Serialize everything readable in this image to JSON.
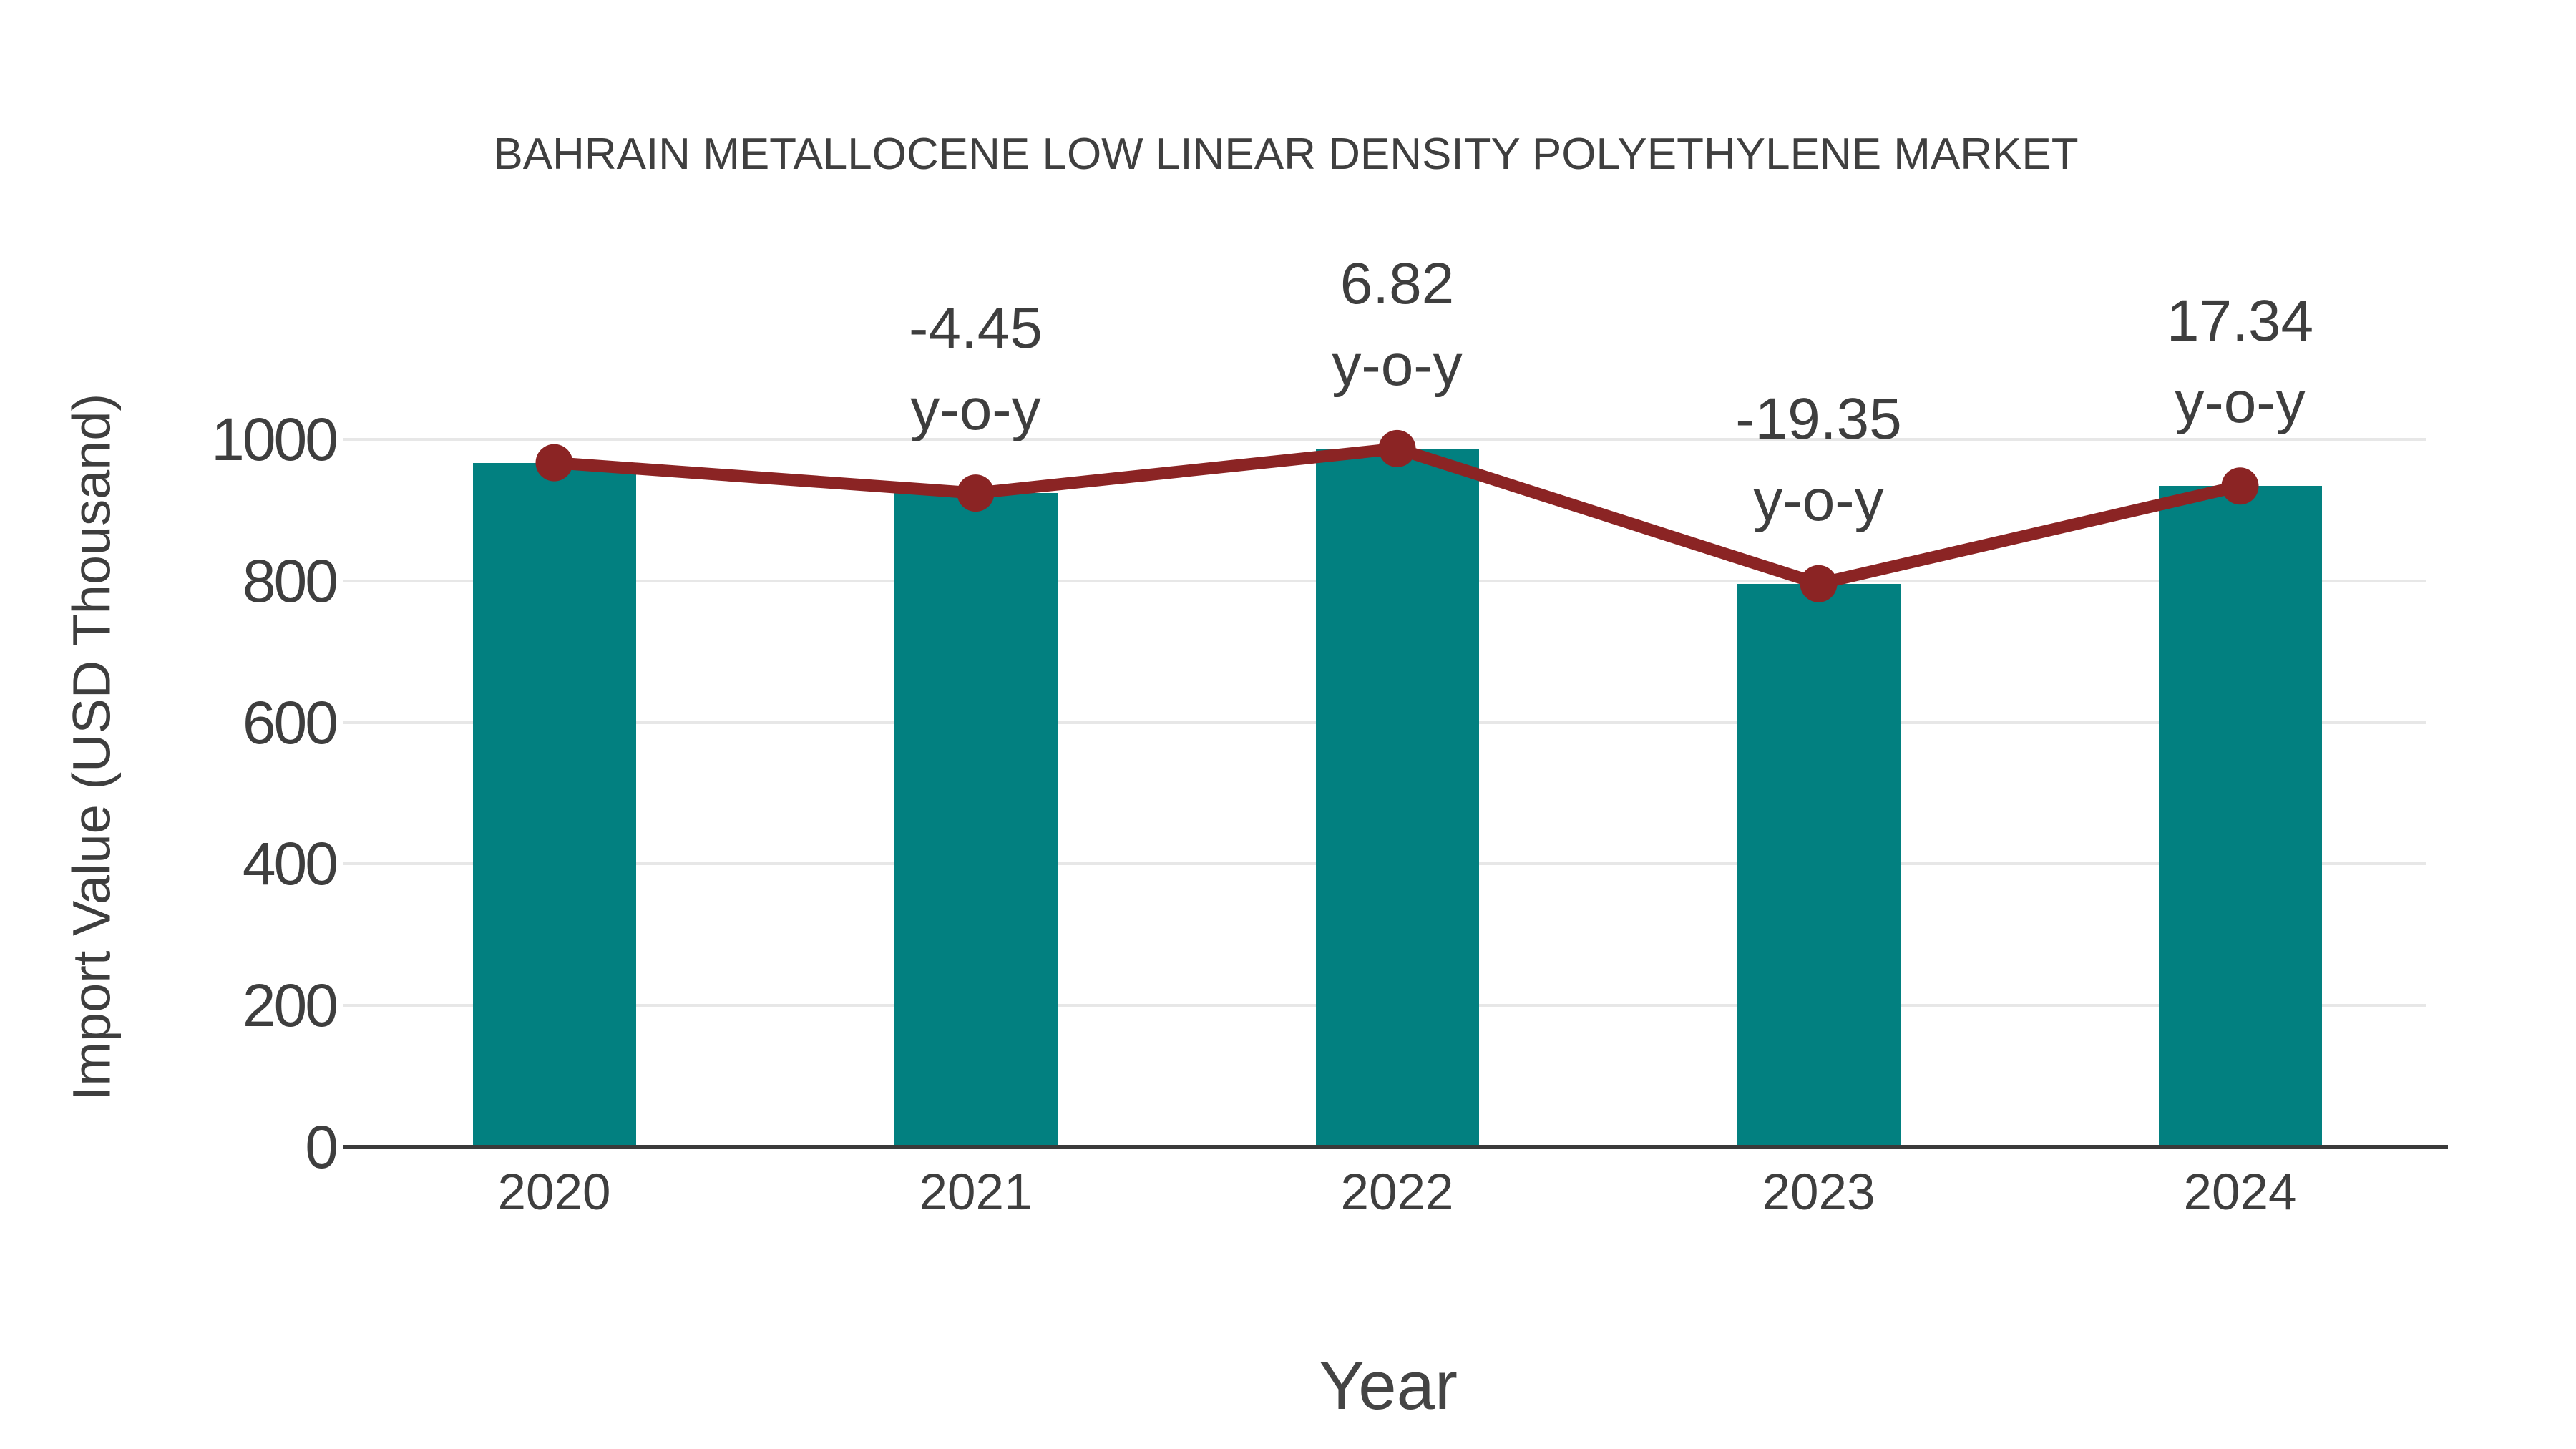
{
  "chart_data": {
    "type": "bar",
    "title": "BAHRAIN METALLOCENE LOW LINEAR DENSITY POLYETHYLENE MARKET",
    "xlabel": "Year",
    "ylabel": "Import Value (USD Thousand)",
    "categories": [
      "2020",
      "2021",
      "2022",
      "2023",
      "2024"
    ],
    "series": [
      {
        "name": "Import Value",
        "type": "bar",
        "values": [
          967,
          924,
          987,
          796,
          934
        ]
      },
      {
        "name": "Import Value trend",
        "type": "line",
        "values": [
          967,
          924,
          987,
          796,
          934
        ]
      }
    ],
    "annotations": [
      {
        "category": "2021",
        "line1": "-4.45",
        "line2": "y-o-y"
      },
      {
        "category": "2022",
        "line1": "6.82",
        "line2": "y-o-y"
      },
      {
        "category": "2023",
        "line1": "-19.35",
        "line2": "y-o-y"
      },
      {
        "category": "2024",
        "line1": "17.34",
        "line2": "y-o-y"
      }
    ],
    "yticks": [
      0,
      200,
      400,
      600,
      800,
      1000
    ],
    "ylim": [
      0,
      1200
    ],
    "grid": "horizontal",
    "legend_position": "none",
    "colors": {
      "bar": "#028080",
      "line": "#8b2424",
      "marker": "#8b2424",
      "grid": "#e7e7e7",
      "axis": "#3a3a3a",
      "text": "#3e3e3e",
      "background": "#ffffff"
    }
  }
}
